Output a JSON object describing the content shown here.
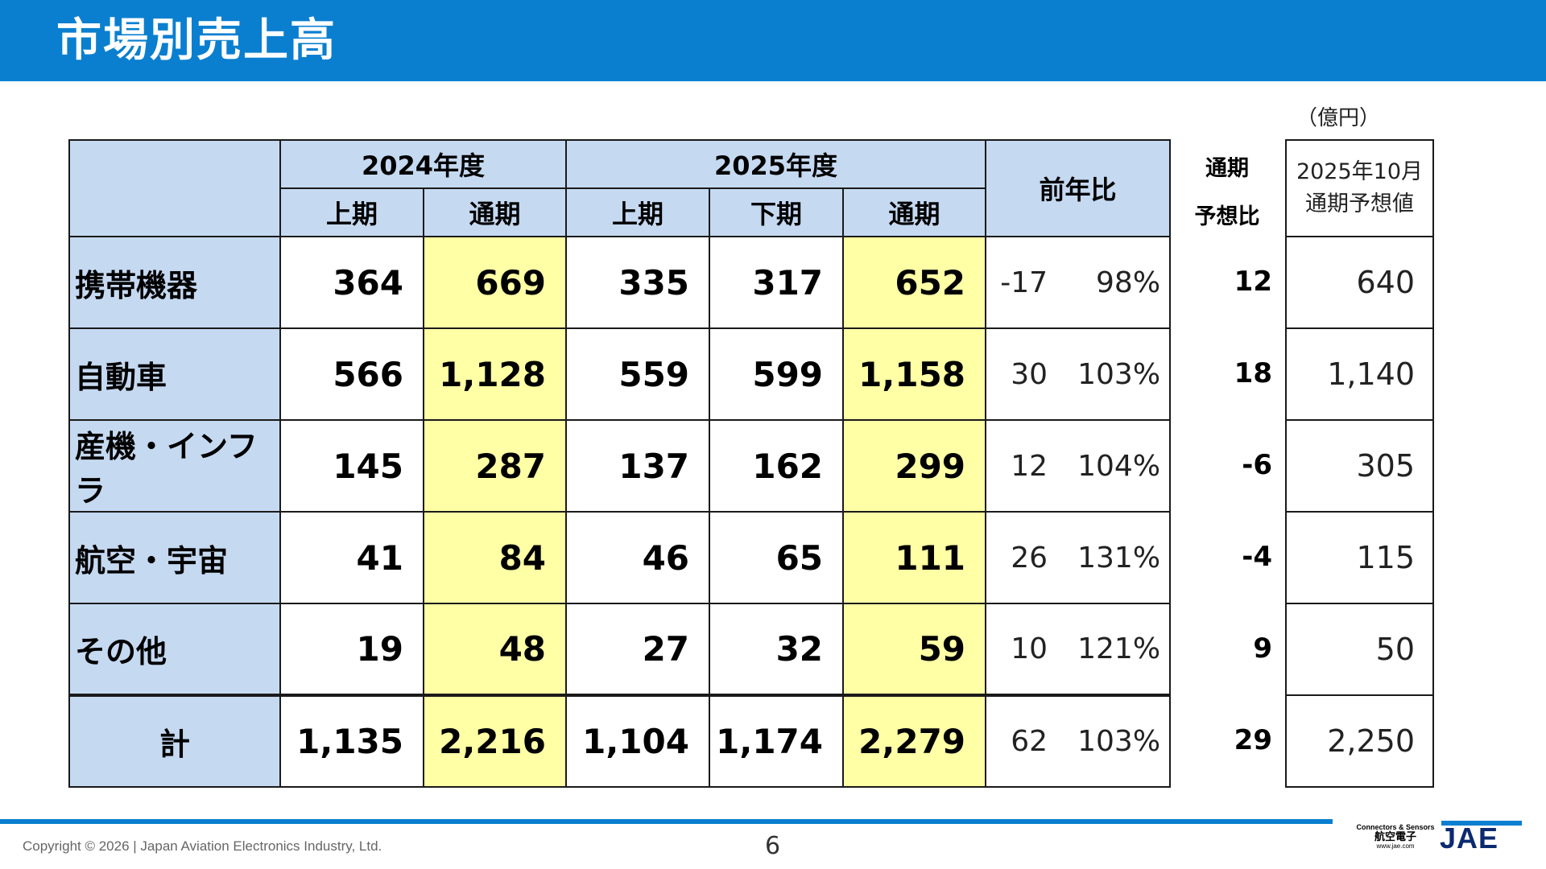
{
  "title": "市場別売上高",
  "unit": "（億円）",
  "headers": {
    "fy2024": "2024年度",
    "fy2025": "2025年度",
    "h1": "上期",
    "h2": "下期",
    "full": "通期",
    "yoy": "前年比",
    "forecast_change_line1": "通期",
    "forecast_change_line2": "予想比",
    "forecast_line1": "2025年10月",
    "forecast_line2": "通期予想値"
  },
  "rows": [
    {
      "label": "携帯機器",
      "fy24_h1": "364",
      "fy24_full": "669",
      "fy25_h1": "335",
      "fy25_h2": "317",
      "fy25_full": "652",
      "yoy_diff": "-17",
      "yoy_pct": "98%",
      "fcst_change": "12",
      "forecast": "640"
    },
    {
      "label": "自動車",
      "fy24_h1": "566",
      "fy24_full": "1,128",
      "fy25_h1": "559",
      "fy25_h2": "599",
      "fy25_full": "1,158",
      "yoy_diff": "30",
      "yoy_pct": "103%",
      "fcst_change": "18",
      "forecast": "1,140"
    },
    {
      "label": "産機・インフラ",
      "fy24_h1": "145",
      "fy24_full": "287",
      "fy25_h1": "137",
      "fy25_h2": "162",
      "fy25_full": "299",
      "yoy_diff": "12",
      "yoy_pct": "104%",
      "fcst_change": "-6",
      "forecast": "305"
    },
    {
      "label": "航空・宇宙",
      "fy24_h1": "41",
      "fy24_full": "84",
      "fy25_h1": "46",
      "fy25_h2": "65",
      "fy25_full": "111",
      "yoy_diff": "26",
      "yoy_pct": "131%",
      "fcst_change": "-4",
      "forecast": "115"
    },
    {
      "label": "その他",
      "fy24_h1": "19",
      "fy24_full": "48",
      "fy25_h1": "27",
      "fy25_h2": "32",
      "fy25_full": "59",
      "yoy_diff": "10",
      "yoy_pct": "121%",
      "fcst_change": "9",
      "forecast": "50"
    },
    {
      "label": "計",
      "fy24_h1": "1,135",
      "fy24_full": "2,216",
      "fy25_h1": "1,104",
      "fy25_h2": "1,174",
      "fy25_full": "2,279",
      "yoy_diff": "62",
      "yoy_pct": "103%",
      "fcst_change": "29",
      "forecast": "2,250"
    }
  ],
  "footer": {
    "copyright": "Copyright © 2026 | Japan Aviation Electronics Industry, Ltd.",
    "page": "6",
    "logo_tagline": "Connectors & Sensors",
    "logo_jp": "航空電子",
    "logo_url": "www.jae.com",
    "logo": "JAE"
  },
  "colors": {
    "header_bar": "#0a7fd0",
    "label_bg": "#c5d9f1",
    "highlight": "#ffffa5"
  }
}
